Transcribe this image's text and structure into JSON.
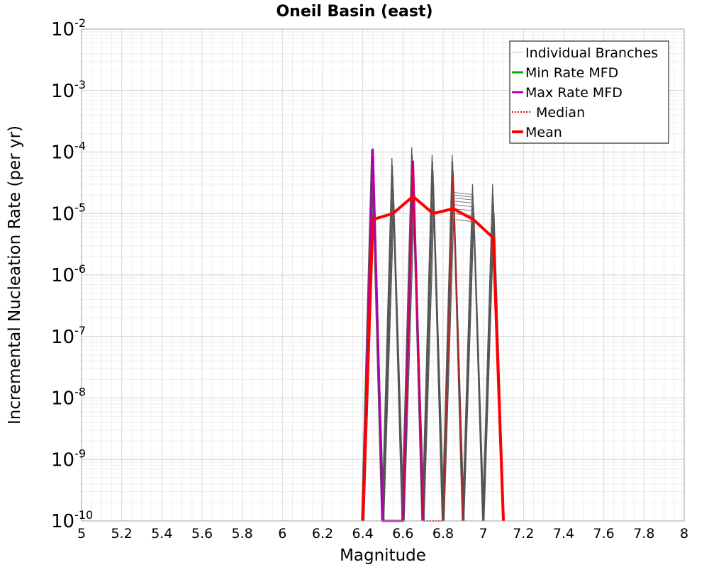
{
  "chart_data": {
    "type": "line",
    "title": "Oneil Basin (east)",
    "xlabel": "Magnitude",
    "ylabel": "Incremental Nucleation Rate (per yr)",
    "xlim": [
      5,
      8
    ],
    "ylim": [
      1e-10,
      0.01
    ],
    "yscale": "log",
    "grid": true,
    "legend_position": "top-right",
    "xticks": [
      "5",
      "5.2",
      "5.4",
      "5.6",
      "5.8",
      "6",
      "6.2",
      "6.4",
      "6.6",
      "6.8",
      "7",
      "7.2",
      "7.4",
      "7.6",
      "7.8",
      "8"
    ],
    "yticks": [
      {
        "base": "10",
        "exp": "-10"
      },
      {
        "base": "10",
        "exp": "-9"
      },
      {
        "base": "10",
        "exp": "-8"
      },
      {
        "base": "10",
        "exp": "-7"
      },
      {
        "base": "10",
        "exp": "-6"
      },
      {
        "base": "10",
        "exp": "-5"
      },
      {
        "base": "10",
        "exp": "-4"
      },
      {
        "base": "10",
        "exp": "-3"
      },
      {
        "base": "10",
        "exp": "-2"
      }
    ],
    "legend": [
      {
        "label": "Individual Branches",
        "color": "#c0c0c0",
        "style": "thin"
      },
      {
        "label": "Min Rate MFD",
        "color": "#00b000",
        "style": "solid"
      },
      {
        "label": "Max Rate MFD",
        "color": "#b000b0",
        "style": "solid"
      },
      {
        "label": "Median",
        "color": "#ff0000",
        "style": "dotted"
      },
      {
        "label": "Mean",
        "color": "#ff0000",
        "style": "thick"
      }
    ],
    "series": [
      {
        "name": "Min Rate MFD",
        "color": "#00b000",
        "points": [
          [
            6.4,
            1e-10
          ],
          [
            6.45,
            0.0001
          ],
          [
            6.5,
            1e-10
          ]
        ]
      },
      {
        "name": "Max Rate MFD",
        "color": "#b000b0",
        "points": [
          [
            6.4,
            1e-10
          ],
          [
            6.45,
            0.00011
          ],
          [
            6.5,
            1e-10
          ],
          [
            6.6,
            1e-10
          ],
          [
            6.65,
            7e-05
          ],
          [
            6.7,
            1e-10
          ]
        ]
      },
      {
        "name": "Median",
        "color": "#ff0000",
        "points": [
          [
            6.6,
            1e-10
          ],
          [
            6.65,
            6e-05
          ],
          [
            6.7,
            1e-10
          ],
          [
            6.8,
            1e-10
          ],
          [
            6.85,
            4e-05
          ],
          [
            6.9,
            1e-10
          ]
        ]
      },
      {
        "name": "Mean",
        "color": "#ff0000",
        "points": [
          [
            6.4,
            1e-10
          ],
          [
            6.45,
            8e-06
          ],
          [
            6.55,
            1e-05
          ],
          [
            6.65,
            1.9e-05
          ],
          [
            6.75,
            1e-05
          ],
          [
            6.85,
            1.2e-05
          ],
          [
            6.95,
            8e-06
          ],
          [
            7.05,
            4e-06
          ],
          [
            7.1,
            1e-10
          ]
        ]
      }
    ],
    "branch_peaks": [
      {
        "x": 6.45,
        "peaks": [
          0.00011,
          9e-05,
          7e-05,
          5e-05,
          3e-05,
          1.5e-05
        ]
      },
      {
        "x": 6.55,
        "peaks": [
          8e-05,
          6e-05,
          4e-05,
          2.5e-05,
          1.5e-05
        ]
      },
      {
        "x": 6.65,
        "peaks": [
          0.00012,
          9e-05,
          7e-05,
          5e-05,
          3e-05,
          1.5e-05
        ]
      },
      {
        "x": 6.75,
        "peaks": [
          9e-05,
          7e-05,
          5e-05,
          3e-05,
          1.5e-05
        ]
      },
      {
        "x": 6.85,
        "peaks": [
          9e-05,
          7e-05,
          5e-05,
          3e-05,
          1.5e-05
        ]
      },
      {
        "x": 6.95,
        "peaks": [
          3e-05,
          2e-05,
          1.4e-05,
          1e-05
        ]
      },
      {
        "x": 7.05,
        "peaks": [
          3e-05,
          2e-05,
          1.4e-05,
          1e-05
        ]
      }
    ],
    "branch_plateau": {
      "x": [
        6.85,
        6.95
      ],
      "levels": [
        2.2e-05,
        2e-05,
        1.8e-05,
        1.6e-05,
        1.4e-05,
        1.2e-05,
        1e-05,
        8e-06
      ]
    }
  }
}
